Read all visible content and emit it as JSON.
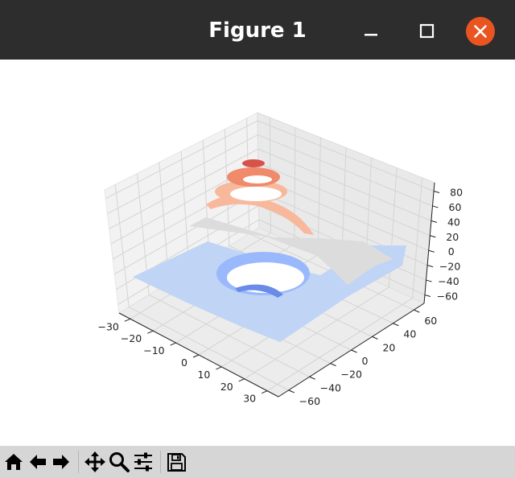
{
  "window": {
    "title": "Figure 1",
    "controls": [
      "minimize-icon",
      "maximize-icon",
      "close-icon"
    ],
    "close_color": "#e95420"
  },
  "toolbar": {
    "buttons": [
      {
        "name": "home-button",
        "icon": "home-icon"
      },
      {
        "name": "back-button",
        "icon": "back-arrow-icon"
      },
      {
        "name": "forward-button",
        "icon": "forward-arrow-icon"
      },
      {
        "name": "pan-button",
        "icon": "move-icon"
      },
      {
        "name": "zoom-button",
        "icon": "zoom-icon"
      },
      {
        "name": "configure-subplots-button",
        "icon": "sliders-icon"
      },
      {
        "name": "save-button",
        "icon": "save-icon"
      }
    ]
  },
  "chart_data": {
    "type": "3d-contourf",
    "colormap": "coolwarm",
    "x_ticks": [
      "−30",
      "−20",
      "−10",
      "0",
      "10",
      "20",
      "30"
    ],
    "y_ticks": [
      "−60",
      "−40",
      "−20",
      "0",
      "20",
      "40",
      "60"
    ],
    "z_ticks": [
      "−60",
      "−40",
      "−20",
      "0",
      "20",
      "40",
      "60",
      "80"
    ],
    "xlim": [
      -30,
      30
    ],
    "ylim": [
      -60,
      60
    ],
    "zlim": [
      -60,
      80
    ],
    "levels": [
      -60,
      -40,
      -20,
      0,
      20,
      40,
      60,
      80
    ],
    "level_colors": [
      "#6a8be7",
      "#9ab9fc",
      "#c0d4f5",
      "#dddcdc",
      "#f7b89c",
      "#ef8a6a",
      "#d6524a"
    ],
    "grid": true
  }
}
